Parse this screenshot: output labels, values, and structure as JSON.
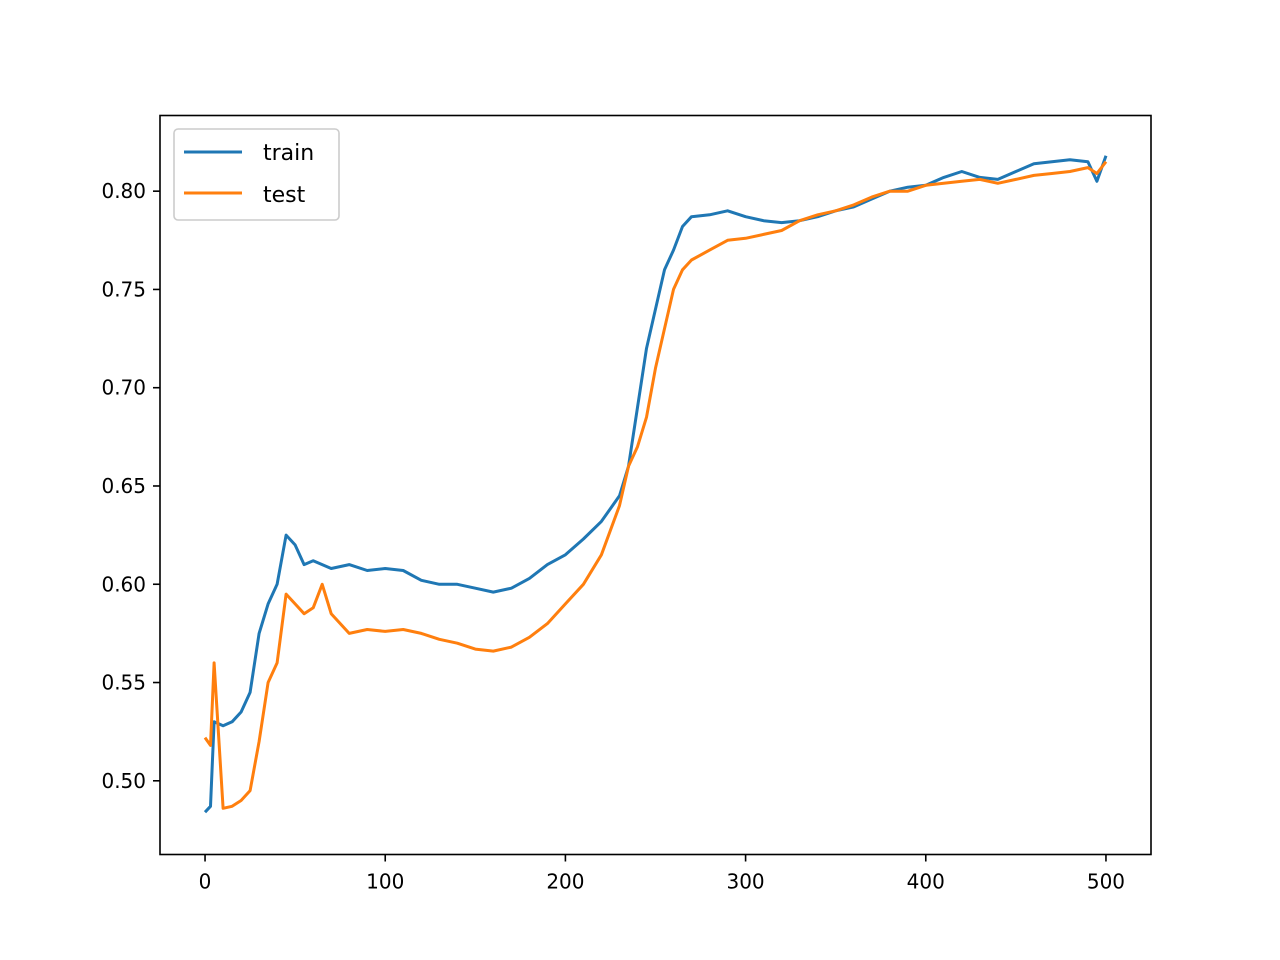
{
  "chart_data": {
    "type": "line",
    "title": "",
    "xlabel": "",
    "ylabel": "",
    "xlim": [
      -25,
      525
    ],
    "ylim": [
      0.4625,
      0.8385
    ],
    "grid": false,
    "legend_position": "top-left",
    "x_ticks": [
      0,
      100,
      200,
      300,
      400,
      500
    ],
    "x_tick_labels": [
      "0",
      "100",
      "200",
      "300",
      "400",
      "500"
    ],
    "y_ticks": [
      0.5,
      0.55,
      0.6,
      0.65,
      0.7,
      0.75,
      0.8
    ],
    "y_tick_labels": [
      "0.50",
      "0.55",
      "0.60",
      "0.65",
      "0.70",
      "0.75",
      "0.80"
    ],
    "x": [
      0,
      3,
      5,
      10,
      15,
      20,
      25,
      30,
      35,
      40,
      45,
      50,
      55,
      60,
      65,
      70,
      80,
      90,
      100,
      110,
      120,
      130,
      140,
      150,
      160,
      170,
      180,
      190,
      200,
      210,
      220,
      230,
      235,
      240,
      245,
      250,
      255,
      260,
      265,
      270,
      280,
      290,
      300,
      310,
      320,
      330,
      340,
      350,
      360,
      370,
      380,
      390,
      400,
      410,
      420,
      430,
      440,
      450,
      460,
      470,
      480,
      490,
      495,
      500
    ],
    "series": [
      {
        "name": "train",
        "color": "#1f77b4",
        "values": [
          0.484,
          0.487,
          0.53,
          0.528,
          0.53,
          0.535,
          0.545,
          0.575,
          0.59,
          0.6,
          0.625,
          0.62,
          0.61,
          0.612,
          0.61,
          0.608,
          0.61,
          0.607,
          0.608,
          0.607,
          0.602,
          0.6,
          0.6,
          0.598,
          0.596,
          0.598,
          0.603,
          0.61,
          0.615,
          0.623,
          0.632,
          0.645,
          0.66,
          0.69,
          0.72,
          0.74,
          0.76,
          0.77,
          0.782,
          0.787,
          0.788,
          0.79,
          0.787,
          0.785,
          0.784,
          0.785,
          0.787,
          0.79,
          0.792,
          0.796,
          0.8,
          0.802,
          0.803,
          0.807,
          0.81,
          0.807,
          0.806,
          0.81,
          0.814,
          0.815,
          0.816,
          0.815,
          0.805,
          0.818
        ]
      },
      {
        "name": "test",
        "color": "#ff7f0e",
        "values": [
          0.522,
          0.518,
          0.56,
          0.486,
          0.487,
          0.49,
          0.495,
          0.52,
          0.55,
          0.56,
          0.595,
          0.59,
          0.585,
          0.588,
          0.6,
          0.585,
          0.575,
          0.577,
          0.576,
          0.577,
          0.575,
          0.572,
          0.57,
          0.567,
          0.566,
          0.568,
          0.573,
          0.58,
          0.59,
          0.6,
          0.615,
          0.64,
          0.66,
          0.67,
          0.685,
          0.71,
          0.73,
          0.75,
          0.76,
          0.765,
          0.77,
          0.775,
          0.776,
          0.778,
          0.78,
          0.785,
          0.788,
          0.79,
          0.793,
          0.797,
          0.8,
          0.8,
          0.803,
          0.804,
          0.805,
          0.806,
          0.804,
          0.806,
          0.808,
          0.809,
          0.81,
          0.812,
          0.809,
          0.815
        ]
      }
    ]
  }
}
